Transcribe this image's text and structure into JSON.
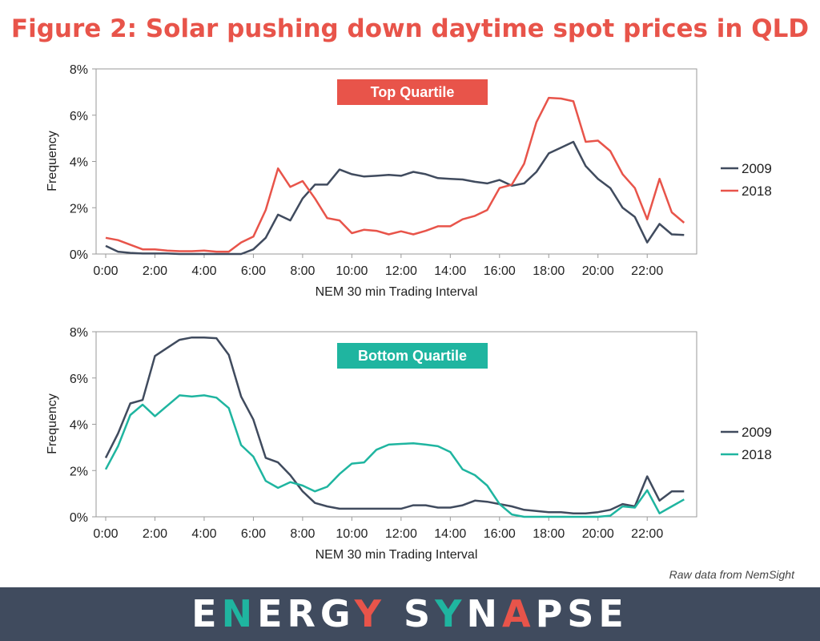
{
  "title": "Figure 2: Solar pushing down daytime spot prices in QLD",
  "source": "Raw data from NemSight",
  "brand": "ENERGY SYNAPSE",
  "colors": {
    "title": "#e8544a",
    "series_2009": "#404b5e",
    "series_2018_top": "#e8544a",
    "series_2018_bottom": "#1fb5a0",
    "footer": "#404b5e"
  },
  "chart_data": [
    {
      "type": "line",
      "title": "Top Quartile",
      "title_color": "#e8544a",
      "xlabel": "NEM 30 min Trading Interval",
      "ylabel": "Frequency",
      "ylim": [
        0,
        8
      ],
      "yticks": [
        "0%",
        "2%",
        "4%",
        "6%",
        "8%"
      ],
      "xticks": [
        "0:00",
        "2:00",
        "4:00",
        "6:00",
        "8:00",
        "10:00",
        "12:00",
        "14:00",
        "16:00",
        "18:00",
        "20:00",
        "22:00"
      ],
      "x": [
        0,
        0.5,
        1,
        1.5,
        2,
        2.5,
        3,
        3.5,
        4,
        4.5,
        5,
        5.5,
        6,
        6.5,
        7,
        7.5,
        8,
        8.5,
        9,
        9.5,
        10,
        10.5,
        11,
        11.5,
        12,
        12.5,
        13,
        13.5,
        14,
        14.5,
        15,
        15.5,
        16,
        16.5,
        17,
        17.5,
        18,
        18.5,
        19,
        19.5,
        20,
        20.5,
        21,
        21.5,
        22,
        22.5,
        23,
        23.5
      ],
      "series": [
        {
          "name": "2009",
          "color": "#404b5e",
          "values": [
            0.35,
            0.1,
            0.05,
            0.02,
            0.02,
            0.02,
            0.0,
            0.0,
            0.0,
            0.0,
            0.0,
            0.0,
            0.2,
            0.7,
            1.7,
            1.45,
            2.4,
            3.0,
            3.0,
            3.65,
            3.45,
            3.35,
            3.38,
            3.42,
            3.38,
            3.55,
            3.45,
            3.28,
            3.25,
            3.22,
            3.12,
            3.05,
            3.2,
            2.95,
            3.05,
            3.55,
            4.35,
            4.6,
            4.85,
            3.8,
            3.25,
            2.85,
            2.0,
            1.6,
            0.5,
            1.3,
            0.85,
            0.82
          ]
        },
        {
          "name": "2018",
          "color": "#e8544a",
          "values": [
            0.7,
            0.6,
            0.4,
            0.2,
            0.2,
            0.15,
            0.12,
            0.12,
            0.15,
            0.1,
            0.1,
            0.5,
            0.75,
            1.9,
            3.7,
            2.9,
            3.15,
            2.4,
            1.55,
            1.45,
            0.9,
            1.05,
            1.0,
            0.85,
            0.98,
            0.85,
            1.0,
            1.2,
            1.2,
            1.5,
            1.65,
            1.9,
            2.85,
            3.0,
            3.9,
            5.7,
            6.75,
            6.72,
            6.6,
            4.85,
            4.9,
            4.45,
            3.45,
            2.85,
            1.5,
            3.25,
            1.8,
            1.35
          ]
        }
      ]
    },
    {
      "type": "line",
      "title": "Bottom Quartile",
      "title_color": "#1fb5a0",
      "xlabel": "NEM 30 min Trading Interval",
      "ylabel": "Frequency",
      "ylim": [
        0,
        8
      ],
      "yticks": [
        "0%",
        "2%",
        "4%",
        "6%",
        "8%"
      ],
      "xticks": [
        "0:00",
        "2:00",
        "4:00",
        "6:00",
        "8:00",
        "10:00",
        "12:00",
        "14:00",
        "16:00",
        "18:00",
        "20:00",
        "22:00"
      ],
      "x": [
        0,
        0.5,
        1,
        1.5,
        2,
        2.5,
        3,
        3.5,
        4,
        4.5,
        5,
        5.5,
        6,
        6.5,
        7,
        7.5,
        8,
        8.5,
        9,
        9.5,
        10,
        10.5,
        11,
        11.5,
        12,
        12.5,
        13,
        13.5,
        14,
        14.5,
        15,
        15.5,
        16,
        16.5,
        17,
        17.5,
        18,
        18.5,
        19,
        19.5,
        20,
        20.5,
        21,
        21.5,
        22,
        22.5,
        23,
        23.5
      ],
      "series": [
        {
          "name": "2009",
          "color": "#404b5e",
          "values": [
            2.55,
            3.6,
            4.9,
            5.05,
            6.95,
            7.3,
            7.65,
            7.75,
            7.75,
            7.72,
            7.0,
            5.2,
            4.2,
            2.55,
            2.35,
            1.8,
            1.1,
            0.6,
            0.45,
            0.35,
            0.35,
            0.35,
            0.35,
            0.35,
            0.35,
            0.5,
            0.5,
            0.4,
            0.4,
            0.5,
            0.7,
            0.65,
            0.55,
            0.45,
            0.3,
            0.25,
            0.2,
            0.2,
            0.15,
            0.15,
            0.2,
            0.3,
            0.55,
            0.45,
            1.75,
            0.7,
            1.1,
            1.1
          ]
        },
        {
          "name": "2018",
          "color": "#1fb5a0",
          "values": [
            2.05,
            3.05,
            4.4,
            4.85,
            4.35,
            4.8,
            5.25,
            5.2,
            5.25,
            5.15,
            4.7,
            3.1,
            2.6,
            1.55,
            1.25,
            1.5,
            1.35,
            1.1,
            1.3,
            1.85,
            2.3,
            2.35,
            2.9,
            3.12,
            3.15,
            3.18,
            3.12,
            3.05,
            2.8,
            2.05,
            1.8,
            1.35,
            0.55,
            0.1,
            0.0,
            0.0,
            0.0,
            0.0,
            0.0,
            0.0,
            0.0,
            0.05,
            0.45,
            0.4,
            1.15,
            0.15,
            0.45,
            0.75
          ]
        }
      ]
    }
  ]
}
